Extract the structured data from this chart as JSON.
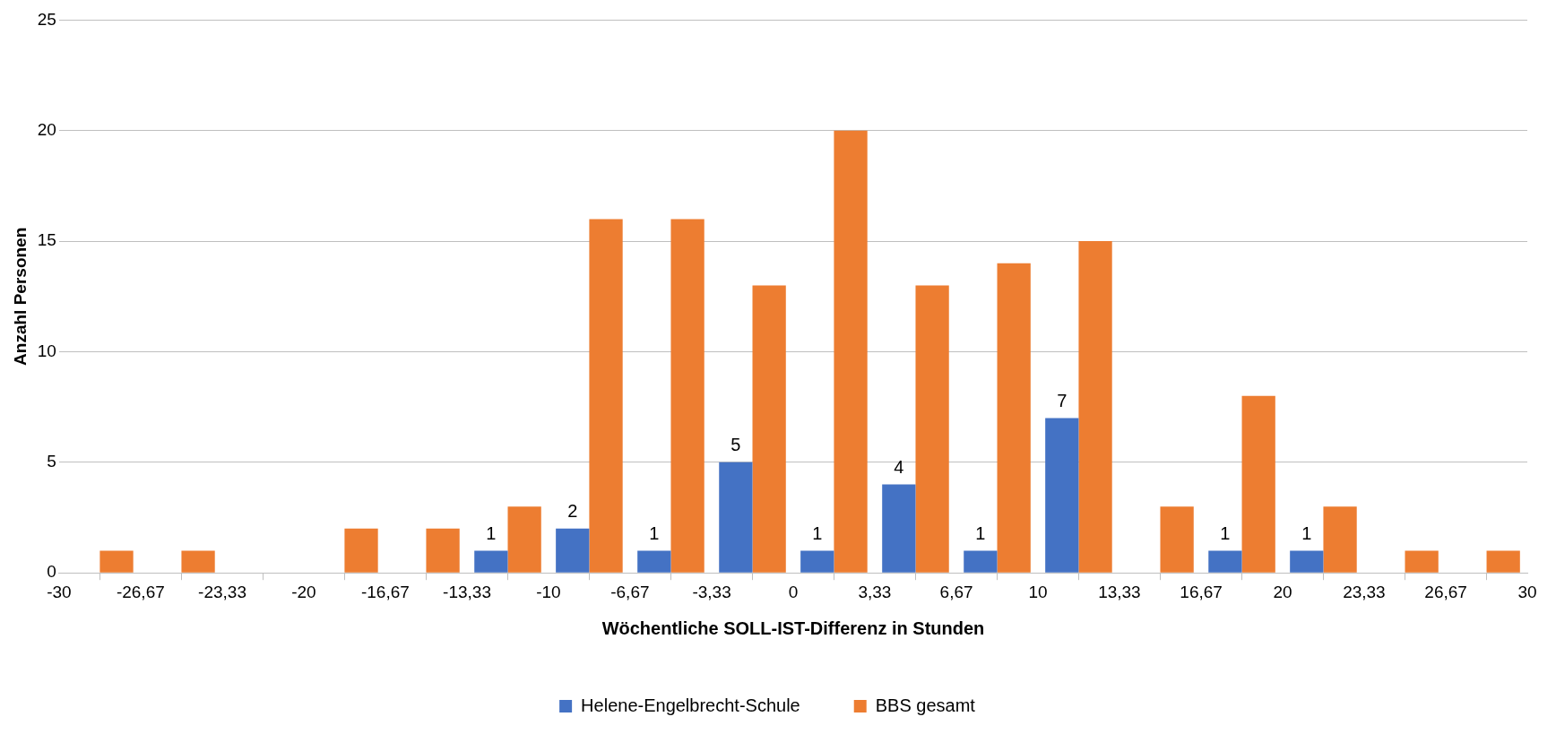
{
  "chart_data": {
    "type": "histogram",
    "xlabel": "Wöchentliche SOLL-IST-Differenz in Stunden",
    "ylabel": "Anzahl Personen",
    "bins": [
      -30,
      -26.67,
      -23.33,
      -20,
      -16.67,
      -13.33,
      -10,
      -6.67,
      -3.33,
      0,
      3.33,
      6.67,
      10,
      13.33,
      16.67,
      20,
      23.33,
      26.67,
      30
    ],
    "series": [
      {
        "name": "Helene-Engelbrecht-Schule",
        "color": "#4472c4",
        "values": [
          0,
          0,
          0,
          0,
          0,
          1,
          2,
          1,
          5,
          1,
          4,
          1,
          7,
          0,
          1,
          1,
          0,
          0
        ],
        "value_labels": [
          null,
          null,
          null,
          null,
          null,
          "1",
          "2",
          "1",
          "5",
          "1",
          "4",
          "1",
          "7",
          null,
          "1",
          "1",
          null,
          null
        ]
      },
      {
        "name": "BBS gesamt",
        "color": "#ed7d31",
        "values": [
          1,
          1,
          0,
          2,
          2,
          3,
          16,
          16,
          13,
          20,
          13,
          14,
          15,
          3,
          8,
          3,
          1,
          1
        ]
      }
    ],
    "xlim": [
      -30,
      30
    ],
    "xticks": [
      -30,
      {
        "value": -26.67,
        "label": "-26,67"
      },
      {
        "value": -23.33,
        "label": "-23,33"
      },
      -20,
      {
        "value": -16.67,
        "label": "-16,67"
      },
      {
        "value": -13.33,
        "label": "-13,33"
      },
      -10,
      {
        "value": -6.67,
        "label": "-6,67"
      },
      {
        "value": -3.33,
        "label": "-3,33"
      },
      0,
      {
        "value": 3.33,
        "label": "3,33"
      },
      {
        "value": 6.67,
        "label": "6,67"
      },
      10,
      {
        "value": 13.33,
        "label": "13,33"
      },
      {
        "value": 16.67,
        "label": "16,67"
      },
      20,
      {
        "value": 23.33,
        "label": "23,33"
      },
      {
        "value": 26.67,
        "label": "26,67"
      },
      30
    ],
    "ylim": [
      0,
      25
    ],
    "yticks": [
      0,
      5,
      10,
      15,
      20,
      25
    ],
    "grid": "y",
    "legend": "bottom"
  }
}
